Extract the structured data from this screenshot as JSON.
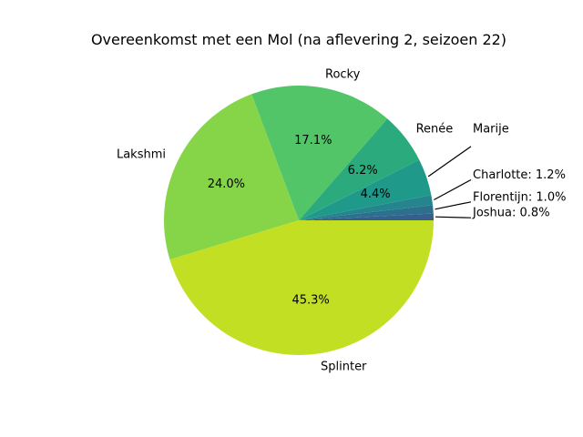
{
  "chart_data": {
    "type": "pie",
    "title": "Overeenkomst met een Mol (na aflevering 2, seizoen 22)",
    "slices": [
      {
        "label": "Joshua",
        "value": 0.8,
        "color": "#355f8d",
        "outside_text": "Joshua: 0.8%"
      },
      {
        "label": "Florentijn",
        "value": 1.0,
        "color": "#2d708e",
        "outside_text": "Florentijn: 1.0%"
      },
      {
        "label": "Charlotte",
        "value": 1.2,
        "color": "#25858e",
        "outside_text": "Charlotte: 1.2%"
      },
      {
        "label": "Marije",
        "value": 4.4,
        "color": "#1f9a8a",
        "outside_text": "Marije",
        "pct_text": "4.4%"
      },
      {
        "label": "Renée",
        "value": 6.2,
        "color": "#2aaa7d",
        "outside_text": "Renée",
        "pct_text": "6.2%"
      },
      {
        "label": "Rocky",
        "value": 17.1,
        "color": "#52c569",
        "outside_text": "Rocky",
        "pct_text": "17.1%"
      },
      {
        "label": "Lakshmi",
        "value": 24.0,
        "color": "#86d549",
        "outside_text": "Lakshmi",
        "pct_text": "24.0%"
      },
      {
        "label": "Splinter",
        "value": 45.3,
        "color": "#c2df23",
        "outside_text": "Splinter",
        "pct_text": "45.3%"
      }
    ]
  }
}
